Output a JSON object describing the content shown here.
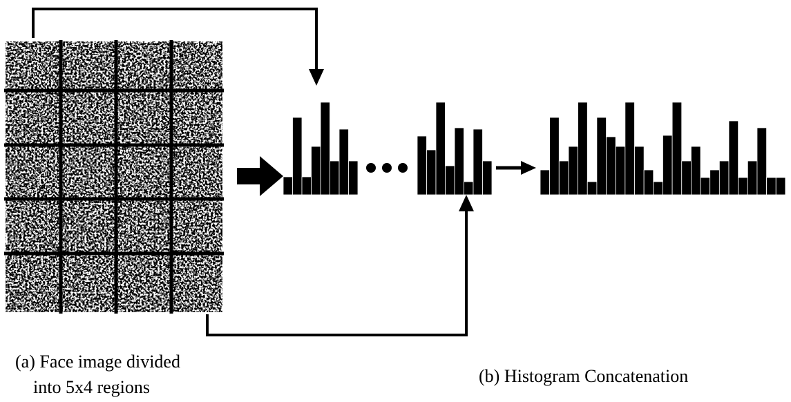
{
  "captions": {
    "a": [
      "(a) Face image divided",
      "into 5x4 regions"
    ],
    "b": "(b) Histogram Concatenation"
  }
}
